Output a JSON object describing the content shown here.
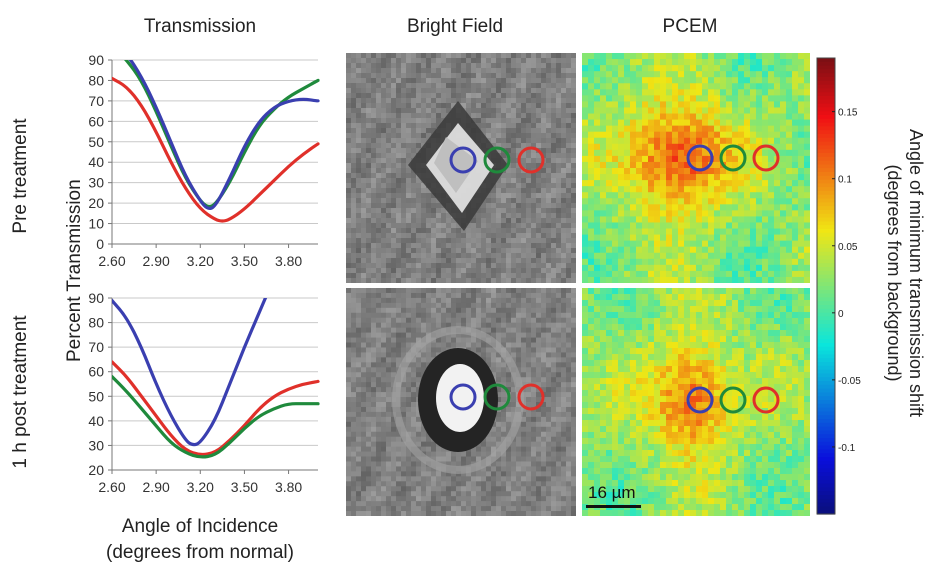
{
  "figure": {
    "column_titles": {
      "transmission": "Transmission",
      "bright_field": "Bright Field",
      "pcem": "PCEM"
    },
    "row_labels": {
      "top": "Pre treatment",
      "bottom": "1 h post treatment"
    },
    "y_axis_title": "Percent Transmission",
    "x_axis_title_line1": "Angle of Incidence",
    "x_axis_title_line2": "(degrees from normal)",
    "scale_bar_label": "16 µm",
    "colorbar": {
      "title_line1": "Angle of minimum transmission shift",
      "title_line2": "(degrees from background)",
      "tick_labels": [
        "0.15",
        "0.1",
        "0.05",
        "0",
        "-0.05",
        "-0.1"
      ],
      "range": [
        -0.15,
        0.19
      ]
    },
    "marker_colors": {
      "blue": "#3a3fb0",
      "green": "#1f8a3c",
      "red": "#e0302a"
    }
  },
  "chart_data": [
    {
      "type": "line",
      "panel": "pre-treatment",
      "xlim": [
        2.6,
        4.0
      ],
      "ylim": [
        0,
        90
      ],
      "xticks": [
        "2.60",
        "2.90",
        "3.20",
        "3.50",
        "3.80"
      ],
      "yticks": [
        "0",
        "10",
        "20",
        "30",
        "40",
        "50",
        "60",
        "70",
        "80",
        "90"
      ],
      "series": [
        {
          "color": "#e0302a",
          "x": [
            2.6,
            2.7,
            2.8,
            2.9,
            3.0,
            3.1,
            3.2,
            3.3,
            3.35,
            3.4,
            3.5,
            3.6,
            3.7,
            3.8,
            3.9,
            4.0
          ],
          "y": [
            81,
            77,
            68,
            55,
            40,
            27,
            17,
            12,
            11,
            12,
            17,
            24,
            31,
            38,
            44,
            49
          ]
        },
        {
          "color": "#1f8a3c",
          "x": [
            2.6,
            2.7,
            2.8,
            2.9,
            3.0,
            3.1,
            3.2,
            3.25,
            3.3,
            3.4,
            3.5,
            3.6,
            3.7,
            3.8,
            3.9,
            4.0
          ],
          "y": [
            97,
            90,
            80,
            65,
            48,
            32,
            21,
            18,
            19,
            30,
            45,
            58,
            66,
            72,
            76,
            80
          ]
        },
        {
          "color": "#3a3fb0",
          "x": [
            2.6,
            2.7,
            2.8,
            2.9,
            3.0,
            3.1,
            3.2,
            3.25,
            3.3,
            3.4,
            3.5,
            3.6,
            3.7,
            3.8,
            3.9,
            4.0
          ],
          "y": [
            100,
            93,
            82,
            67,
            50,
            33,
            21,
            17,
            18,
            32,
            48,
            60,
            67,
            70,
            71,
            70
          ]
        }
      ]
    },
    {
      "type": "line",
      "panel": "1 h post treatment",
      "xlim": [
        2.6,
        4.0
      ],
      "ylim": [
        20,
        90
      ],
      "xticks": [
        "2.60",
        "2.90",
        "3.20",
        "3.50",
        "3.80"
      ],
      "yticks": [
        "20",
        "30",
        "40",
        "50",
        "60",
        "70",
        "80",
        "90"
      ],
      "series": [
        {
          "color": "#3a3fb0",
          "x": [
            2.6,
            2.7,
            2.8,
            2.9,
            3.0,
            3.1,
            3.15,
            3.2,
            3.3,
            3.4,
            3.5,
            3.6,
            3.65
          ],
          "y": [
            89,
            82,
            70,
            55,
            42,
            32,
            30,
            31,
            40,
            55,
            70,
            84,
            91
          ]
        },
        {
          "color": "#e0302a",
          "x": [
            2.6,
            2.7,
            2.8,
            2.9,
            3.0,
            3.1,
            3.2,
            3.3,
            3.4,
            3.5,
            3.6,
            3.7,
            3.8,
            3.9,
            4.0
          ],
          "y": [
            64,
            58,
            50,
            42,
            34,
            28,
            26,
            27,
            32,
            38,
            45,
            50,
            53,
            55,
            56
          ]
        },
        {
          "color": "#1f8a3c",
          "x": [
            2.6,
            2.7,
            2.8,
            2.9,
            3.0,
            3.1,
            3.2,
            3.3,
            3.4,
            3.5,
            3.6,
            3.7,
            3.8,
            3.9,
            4.0
          ],
          "y": [
            58,
            52,
            45,
            38,
            31,
            27,
            25,
            26,
            31,
            37,
            42,
            45,
            47,
            47,
            47
          ]
        }
      ]
    }
  ]
}
